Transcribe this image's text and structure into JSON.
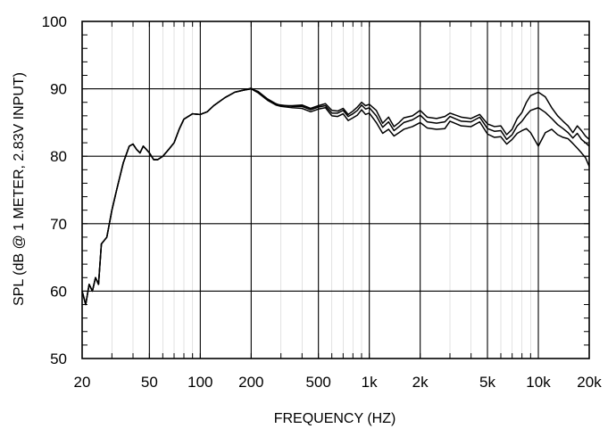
{
  "chart_data": {
    "type": "line",
    "xlabel": "FREQUENCY  (HZ)",
    "ylabel": "SPL (dB @ 1 METER, 2.83V INPUT)",
    "xscale": "log",
    "xlim": [
      20,
      20000
    ],
    "ylim": [
      50,
      100
    ],
    "grid": true,
    "x_ticks": [
      {
        "value": 20,
        "label": "20"
      },
      {
        "value": 50,
        "label": "50"
      },
      {
        "value": 100,
        "label": "100"
      },
      {
        "value": 200,
        "label": "200"
      },
      {
        "value": 500,
        "label": "500"
      },
      {
        "value": 1000,
        "label": "1k"
      },
      {
        "value": 2000,
        "label": "2k"
      },
      {
        "value": 5000,
        "label": "5k"
      },
      {
        "value": 10000,
        "label": "10k"
      },
      {
        "value": 20000,
        "label": "20k"
      }
    ],
    "y_ticks": [
      {
        "value": 50,
        "label": "50"
      },
      {
        "value": 60,
        "label": "60"
      },
      {
        "value": 70,
        "label": "70"
      },
      {
        "value": 80,
        "label": "80"
      },
      {
        "value": 90,
        "label": "90"
      },
      {
        "value": 100,
        "label": "100"
      }
    ],
    "series": [
      {
        "x": [
          20,
          21,
          22,
          23,
          24,
          25,
          26,
          27,
          28,
          30,
          32,
          35,
          38,
          40,
          42,
          44,
          46,
          48,
          50,
          53,
          56,
          60,
          65,
          70,
          75,
          80,
          90,
          100,
          110,
          120,
          140,
          160,
          180,
          200,
          220,
          250,
          280,
          300,
          350,
          400,
          450,
          500,
          550,
          600,
          650,
          700,
          750,
          800,
          850,
          900,
          950,
          1000,
          1100,
          1200,
          1300,
          1400,
          1500,
          1600,
          1800,
          2000,
          2200,
          2500,
          2800,
          3000,
          3500,
          4000,
          4500,
          5000,
          5500,
          6000,
          6500,
          7000,
          7500,
          8000,
          8500,
          9000,
          10000,
          11000,
          12000,
          13000,
          14000,
          15000,
          16000,
          17000,
          18000,
          19000,
          20000
        ],
        "values": [
          60,
          58,
          61,
          60,
          62,
          61,
          67,
          67.5,
          68,
          72,
          75,
          79,
          81.5,
          81.8,
          81,
          80.5,
          81.5,
          81,
          80.5,
          79.5,
          79.5,
          80,
          81,
          82,
          84,
          85.5,
          86.3,
          86.2,
          86.6,
          87.5,
          88.7,
          89.5,
          89.8,
          90,
          89.6,
          88.5,
          87.8,
          87.5,
          87.5,
          87.6,
          87.1,
          87.5,
          87.8,
          86.8,
          86.7,
          87.1,
          86.2,
          86.7,
          87.3,
          88,
          87.5,
          87.7,
          86.8,
          84.9,
          85.8,
          84.4,
          85,
          85.7,
          86,
          86.8,
          85.8,
          85.6,
          85.9,
          86.4,
          85.8,
          85.6,
          86.2,
          84.8,
          84.4,
          84.5,
          83.2,
          84,
          85.6,
          86.5,
          88,
          89,
          89.5,
          88.8,
          87.2,
          86,
          85.2,
          84.5,
          83.5,
          84.5,
          83.8,
          83,
          82.5
        ]
      },
      {
        "x": [
          20,
          21,
          22,
          23,
          24,
          25,
          26,
          27,
          28,
          30,
          32,
          35,
          38,
          40,
          42,
          44,
          46,
          48,
          50,
          53,
          56,
          60,
          65,
          70,
          75,
          80,
          90,
          100,
          110,
          120,
          140,
          160,
          180,
          200,
          220,
          250,
          280,
          300,
          350,
          400,
          450,
          500,
          550,
          600,
          650,
          700,
          750,
          800,
          850,
          900,
          950,
          1000,
          1100,
          1200,
          1300,
          1400,
          1500,
          1600,
          1800,
          2000,
          2200,
          2500,
          2800,
          3000,
          3500,
          4000,
          4500,
          5000,
          5500,
          6000,
          6500,
          7000,
          7500,
          8000,
          8500,
          9000,
          10000,
          11000,
          12000,
          13000,
          14000,
          15000,
          16000,
          17000,
          18000,
          19000,
          20000
        ],
        "values": [
          60,
          58,
          61,
          60,
          62,
          61,
          67,
          67.5,
          68,
          72,
          75,
          79,
          81.5,
          81.8,
          81,
          80.5,
          81.5,
          81,
          80.5,
          79.5,
          79.5,
          80,
          81,
          82,
          84,
          85.5,
          86.3,
          86.2,
          86.6,
          87.5,
          88.7,
          89.5,
          89.8,
          90.1,
          89.5,
          88.4,
          87.7,
          87.6,
          87.4,
          87.4,
          86.9,
          87.3,
          87.5,
          86.4,
          86.4,
          86.8,
          85.9,
          86.3,
          86.8,
          87.6,
          87,
          87.2,
          86,
          84.3,
          85.1,
          83.8,
          84.4,
          85,
          85.4,
          86.1,
          85.1,
          84.9,
          85.1,
          85.9,
          85.2,
          85.1,
          85.8,
          84.1,
          83.7,
          83.8,
          82.5,
          83.2,
          84.5,
          85.2,
          86.1,
          86.8,
          87.2,
          86.5,
          85.6,
          84.7,
          84.1,
          83.5,
          82.7,
          83.4,
          82.5,
          82,
          81.5
        ]
      },
      {
        "x": [
          20,
          21,
          22,
          23,
          24,
          25,
          26,
          27,
          28,
          30,
          32,
          35,
          38,
          40,
          42,
          44,
          46,
          48,
          50,
          53,
          56,
          60,
          65,
          70,
          75,
          80,
          90,
          100,
          110,
          120,
          140,
          160,
          180,
          200,
          220,
          250,
          280,
          300,
          350,
          400,
          450,
          500,
          550,
          600,
          650,
          700,
          750,
          800,
          850,
          900,
          950,
          1000,
          1100,
          1200,
          1300,
          1400,
          1500,
          1600,
          1800,
          2000,
          2200,
          2500,
          2800,
          3000,
          3500,
          4000,
          4500,
          5000,
          5500,
          6000,
          6500,
          7000,
          7500,
          8000,
          8500,
          9000,
          10000,
          11000,
          12000,
          13000,
          14000,
          15000,
          16000,
          17000,
          18000,
          19000,
          20000
        ],
        "values": [
          60,
          58,
          61,
          60,
          62,
          61,
          67,
          67.5,
          68,
          72,
          75,
          79,
          81.5,
          81.8,
          81,
          80.5,
          81.5,
          81,
          80.5,
          79.5,
          79.5,
          80,
          81,
          82,
          84,
          85.5,
          86.3,
          86.2,
          86.6,
          87.5,
          88.7,
          89.5,
          89.8,
          90,
          89.4,
          88.3,
          87.6,
          87.4,
          87.2,
          87.1,
          86.6,
          87,
          87.2,
          86,
          85.9,
          86.3,
          85.3,
          85.7,
          86.1,
          86.9,
          86.2,
          86.4,
          85,
          83.4,
          84,
          83,
          83.5,
          84,
          84.4,
          85,
          84.2,
          84,
          84.1,
          85.2,
          84.5,
          84.4,
          85.1,
          83.3,
          82.8,
          82.9,
          81.8,
          82.5,
          83.4,
          83.8,
          84.1,
          83.5,
          81.5,
          83.5,
          84,
          83.2,
          82.8,
          82.6,
          81.9,
          81.2,
          80.5,
          79.8,
          78.5
        ]
      }
    ]
  }
}
